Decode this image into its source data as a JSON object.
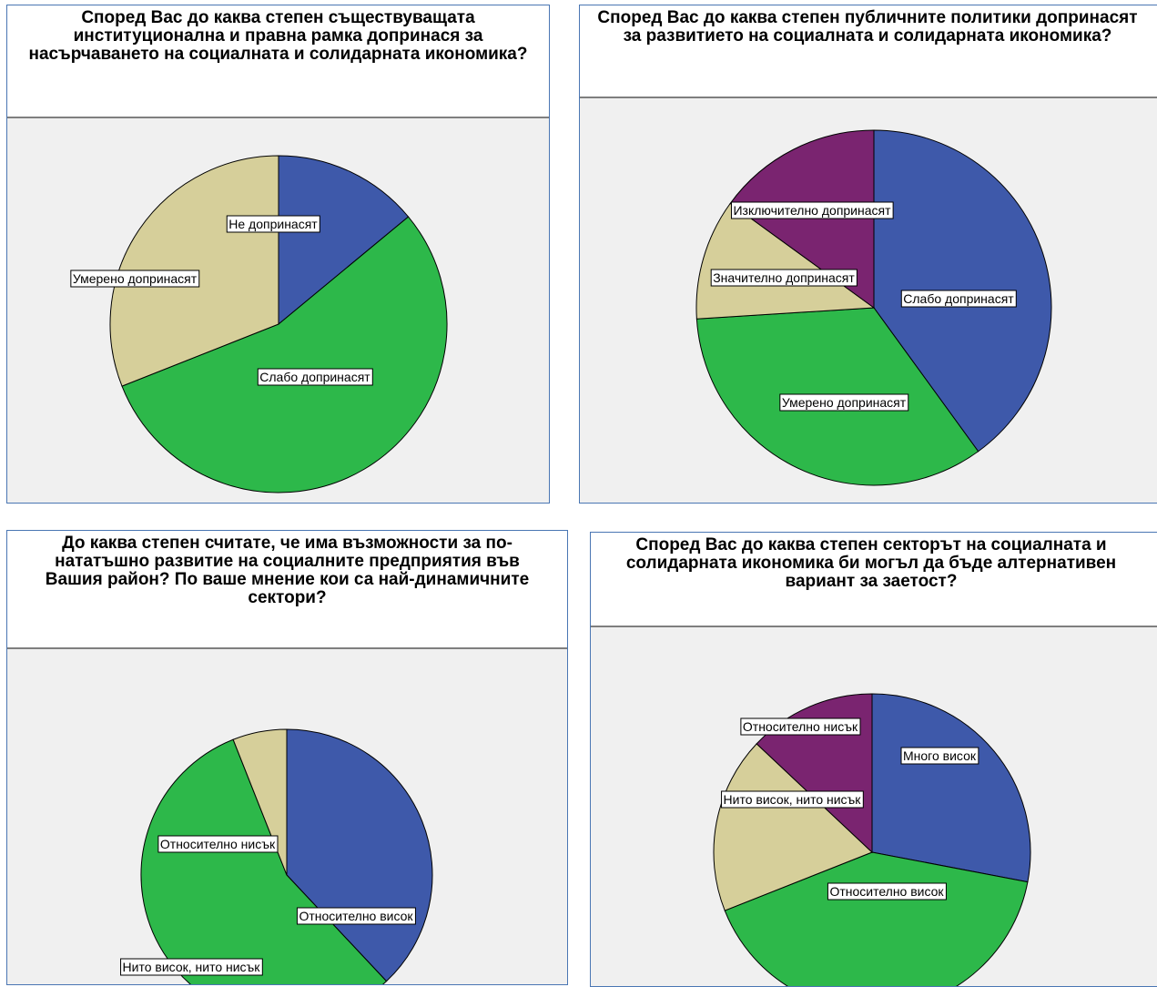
{
  "colors": {
    "blue": "#3e59aa",
    "green": "#2db84a",
    "beige": "#d6cf9a",
    "purple": "#7a2470"
  },
  "chart_data": [
    {
      "type": "pie",
      "title": "Според Вас до каква степен съществуващата институционална и правна рамка допринася за насърчаването на социалната и солидарната икономика?",
      "slices": [
        {
          "label": "Не допринасят",
          "value": 14,
          "color": "#3e59aa"
        },
        {
          "label": "Слабо допринасят",
          "value": 55,
          "color": "#2db84a"
        },
        {
          "label": "Умерено допринасят",
          "value": 31,
          "color": "#d6cf9a"
        }
      ]
    },
    {
      "type": "pie",
      "title": "Според Вас до каква степен публичните политики допринасят за развитието на социалната и солидарната икономика?",
      "slices": [
        {
          "label": "Слабо допринасят",
          "value": 40,
          "color": "#3e59aa"
        },
        {
          "label": "Умерено допринасят",
          "value": 34,
          "color": "#2db84a"
        },
        {
          "label": "Значително допринасят",
          "value": 11,
          "color": "#d6cf9a"
        },
        {
          "label": "Изключително допринасят",
          "value": 15,
          "color": "#7a2470"
        }
      ]
    },
    {
      "type": "pie",
      "title": "До каква степен считате, че има възможности за по-нататъшно развитие на социалните предприятия във Вашия район? По ваше мнение кои са най-динамичните сектори?",
      "slices": [
        {
          "label": "Относително висок",
          "value": 38,
          "color": "#3e59aa"
        },
        {
          "label": "Нито висок, нито нисък",
          "value": 56,
          "color": "#2db84a"
        },
        {
          "label": "Относително нисък",
          "value": 6,
          "color": "#d6cf9a"
        }
      ]
    },
    {
      "type": "pie",
      "title": "Според Вас до каква степен секторът на социалната и солидарната икономика би могъл да бъде алтернативен вариант за заетост?",
      "slices": [
        {
          "label": "Много висок",
          "value": 28,
          "color": "#3e59aa"
        },
        {
          "label": "Относително висок",
          "value": 41,
          "color": "#2db84a"
        },
        {
          "label": "Нито висок, нито нисък",
          "value": 18,
          "color": "#d6cf9a"
        },
        {
          "label": "Относително нисък",
          "value": 13,
          "color": "#7a2470"
        }
      ]
    }
  ]
}
